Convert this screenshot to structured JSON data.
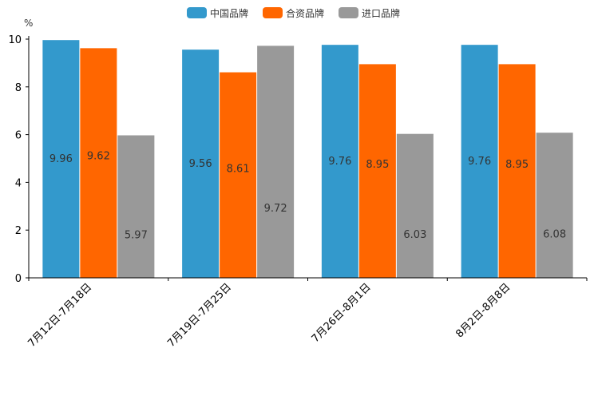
{
  "chart_data": {
    "type": "bar",
    "title": "",
    "ylabel": "%",
    "xlabel": "",
    "ylim": [
      0,
      10
    ],
    "yticks": [
      "0",
      "2",
      "4",
      "6",
      "8",
      "10"
    ],
    "categories": [
      "7月12日-7月18日",
      "7月19日-7月25日",
      "7月26日-8月1日",
      "8月2日-8月8日"
    ],
    "series": [
      {
        "name": "中国品牌",
        "color": "#3399cc",
        "values": [
          9.96,
          9.56,
          9.76,
          9.76
        ],
        "labels": [
          "9.96",
          "9.56",
          "9.76",
          "9.76"
        ]
      },
      {
        "name": "合资品牌",
        "color": "#ff6600",
        "values": [
          9.62,
          8.61,
          8.95,
          8.95
        ],
        "labels": [
          "9.62",
          "8.61",
          "8.95",
          "8.95"
        ]
      },
      {
        "name": "进口品牌",
        "color": "#999999",
        "values": [
          5.97,
          9.72,
          6.03,
          6.08
        ],
        "labels": [
          "5.97",
          "9.72",
          "6.03",
          "6.08"
        ]
      }
    ],
    "legend_position": "top-center",
    "grid": false
  }
}
